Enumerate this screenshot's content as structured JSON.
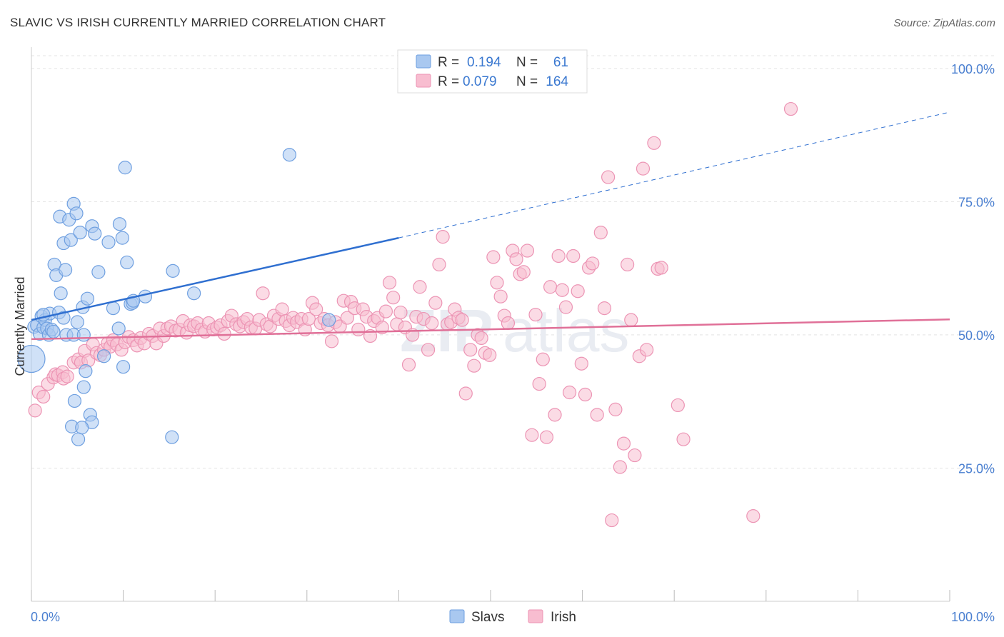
{
  "title": "SLAVIC VS IRISH CURRENTLY MARRIED CORRELATION CHART",
  "source": "Source: ZipAtlas.com",
  "watermark": {
    "zip": "ZIP",
    "atlas": "atlas"
  },
  "stats": [
    {
      "r_label": "R =",
      "r": "0.194",
      "n_label": "N =",
      "n": "61"
    },
    {
      "r_label": "R =",
      "r": "0.079",
      "n_label": "N =",
      "n": "164"
    }
  ],
  "legend": [
    {
      "label": "Slavs"
    },
    {
      "label": "Irish"
    }
  ],
  "colors": {
    "slavs_fill": "#a9c8f0",
    "slavs_stroke": "#6e9fe0",
    "slavs_line": "#2f6fd0",
    "irish_fill": "#f8bdd0",
    "irish_stroke": "#ec94b4",
    "irish_line": "#e07098",
    "tick": "#4a7fd0",
    "grid": "#e3e3e3"
  },
  "chart_data": {
    "type": "scatter",
    "xlabel": "",
    "ylabel": "Currently Married",
    "xlim": [
      0,
      100
    ],
    "ylim": [
      0,
      104
    ],
    "x_tick_labels": [
      "0.0%",
      "100.0%"
    ],
    "y_ticks": [
      25,
      50,
      75,
      100
    ],
    "y_tick_labels": [
      "25.0%",
      "50.0%",
      "75.0%",
      "100.0%"
    ],
    "grid": true,
    "legend_position": "bottom-center",
    "series": [
      {
        "name": "Slavs",
        "r": 0.194,
        "n": 61,
        "trend": {
          "x": [
            0,
            40
          ],
          "y": [
            52.8,
            68.2
          ],
          "dashed_to": [
            100,
            91.8
          ]
        },
        "points": [
          [
            0,
            45.5
          ],
          [
            0.3,
            51.5
          ],
          [
            0.6,
            51.8
          ],
          [
            0.9,
            50.2
          ],
          [
            1.1,
            53.5
          ],
          [
            1.3,
            51.4
          ],
          [
            1.5,
            52.8
          ],
          [
            1.7,
            51.2
          ],
          [
            1.9,
            50.0
          ],
          [
            2.2,
            51.0
          ],
          [
            2.0,
            54.0
          ],
          [
            2.5,
            63.2
          ],
          [
            2.7,
            61.2
          ],
          [
            3.0,
            54.2
          ],
          [
            3.2,
            57.8
          ],
          [
            3.5,
            67.2
          ],
          [
            3.7,
            62.2
          ],
          [
            3.8,
            50.0
          ],
          [
            3.1,
            72.2
          ],
          [
            4.1,
            71.6
          ],
          [
            4.3,
            67.8
          ],
          [
            4.6,
            74.6
          ],
          [
            4.9,
            72.8
          ],
          [
            5.3,
            69.2
          ],
          [
            5.6,
            55.2
          ],
          [
            6.1,
            56.8
          ],
          [
            6.6,
            70.4
          ],
          [
            6.9,
            69.0
          ],
          [
            7.3,
            61.8
          ],
          [
            8.4,
            67.4
          ],
          [
            8.9,
            55.0
          ],
          [
            9.5,
            51.2
          ],
          [
            9.6,
            70.8
          ],
          [
            9.9,
            68.2
          ],
          [
            10.2,
            81.4
          ],
          [
            10.4,
            63.6
          ],
          [
            10.8,
            55.8
          ],
          [
            11.0,
            56.0
          ],
          [
            11.1,
            56.4
          ],
          [
            12.4,
            57.2
          ],
          [
            15.4,
            62.0
          ],
          [
            17.7,
            57.8
          ],
          [
            28.1,
            83.8
          ],
          [
            32.4,
            52.8
          ],
          [
            4.7,
            37.6
          ],
          [
            4.6,
            50.0
          ],
          [
            5.0,
            52.4
          ],
          [
            5.7,
            50.0
          ],
          [
            5.9,
            43.2
          ],
          [
            6.4,
            35.0
          ],
          [
            6.6,
            33.6
          ],
          [
            4.4,
            32.8
          ],
          [
            5.5,
            32.6
          ],
          [
            5.1,
            30.4
          ],
          [
            5.7,
            40.2
          ],
          [
            7.9,
            46.0
          ],
          [
            10.0,
            44.0
          ],
          [
            15.3,
            30.8
          ],
          [
            3.5,
            53.2
          ],
          [
            1.3,
            53.8
          ],
          [
            2.4,
            50.6
          ]
        ]
      },
      {
        "name": "Irish",
        "r": 0.079,
        "n": 164,
        "trend": {
          "x": [
            0,
            100
          ],
          "y": [
            49.2,
            52.9
          ]
        },
        "points": [
          [
            0.4,
            35.8
          ],
          [
            0.8,
            39.2
          ],
          [
            1.3,
            38.4
          ],
          [
            1.8,
            40.8
          ],
          [
            2.4,
            42.0
          ],
          [
            2.6,
            42.6
          ],
          [
            2.9,
            42.4
          ],
          [
            3.4,
            43.0
          ],
          [
            3.5,
            41.8
          ],
          [
            3.9,
            42.2
          ],
          [
            4.6,
            44.8
          ],
          [
            5.1,
            45.4
          ],
          [
            5.4,
            44.8
          ],
          [
            5.8,
            47.0
          ],
          [
            6.2,
            45.2
          ],
          [
            6.7,
            48.2
          ],
          [
            7.1,
            46.6
          ],
          [
            7.5,
            46.2
          ],
          [
            7.9,
            47.2
          ],
          [
            8.3,
            48.4
          ],
          [
            8.6,
            47.8
          ],
          [
            8.9,
            49.0
          ],
          [
            9.3,
            48.2
          ],
          [
            9.8,
            47.2
          ],
          [
            10.2,
            48.6
          ],
          [
            10.6,
            49.6
          ],
          [
            11.1,
            49.0
          ],
          [
            11.5,
            48.0
          ],
          [
            11.9,
            49.4
          ],
          [
            12.3,
            48.4
          ],
          [
            12.8,
            50.2
          ],
          [
            13.2,
            49.8
          ],
          [
            13.6,
            48.4
          ],
          [
            14.0,
            51.2
          ],
          [
            14.4,
            49.8
          ],
          [
            14.8,
            51.2
          ],
          [
            15.2,
            51.6
          ],
          [
            15.7,
            50.8
          ],
          [
            16.1,
            51.0
          ],
          [
            16.5,
            52.6
          ],
          [
            16.9,
            50.4
          ],
          [
            17.3,
            51.8
          ],
          [
            17.7,
            51.6
          ],
          [
            18.1,
            52.2
          ],
          [
            18.5,
            51.0
          ],
          [
            18.9,
            50.6
          ],
          [
            19.3,
            52.2
          ],
          [
            19.8,
            51.0
          ],
          [
            20.2,
            51.4
          ],
          [
            20.6,
            51.8
          ],
          [
            21.0,
            50.2
          ],
          [
            21.4,
            52.6
          ],
          [
            21.8,
            53.6
          ],
          [
            22.3,
            52.0
          ],
          [
            22.7,
            51.6
          ],
          [
            23.1,
            52.4
          ],
          [
            23.5,
            53.0
          ],
          [
            23.9,
            51.4
          ],
          [
            24.4,
            51.2
          ],
          [
            24.8,
            52.8
          ],
          [
            25.2,
            57.8
          ],
          [
            25.6,
            52.0
          ],
          [
            26.0,
            51.6
          ],
          [
            26.4,
            53.6
          ],
          [
            26.9,
            53.0
          ],
          [
            27.3,
            54.8
          ],
          [
            27.7,
            52.6
          ],
          [
            28.1,
            51.8
          ],
          [
            28.5,
            53.2
          ],
          [
            28.9,
            52.4
          ],
          [
            29.4,
            53.0
          ],
          [
            29.8,
            51.0
          ],
          [
            30.2,
            53.0
          ],
          [
            30.6,
            56.0
          ],
          [
            31.0,
            54.8
          ],
          [
            31.5,
            52.2
          ],
          [
            31.9,
            53.0
          ],
          [
            32.3,
            51.8
          ],
          [
            32.7,
            48.8
          ],
          [
            33.1,
            52.4
          ],
          [
            33.6,
            51.6
          ],
          [
            34.0,
            56.4
          ],
          [
            34.4,
            53.2
          ],
          [
            34.8,
            56.2
          ],
          [
            35.2,
            55.0
          ],
          [
            35.6,
            51.0
          ],
          [
            36.1,
            54.8
          ],
          [
            36.5,
            53.4
          ],
          [
            36.9,
            49.8
          ],
          [
            37.3,
            52.6
          ],
          [
            37.7,
            53.2
          ],
          [
            38.2,
            51.4
          ],
          [
            38.6,
            54.4
          ],
          [
            39.0,
            59.8
          ],
          [
            39.4,
            57.0
          ],
          [
            39.8,
            52.0
          ],
          [
            40.2,
            54.2
          ],
          [
            40.7,
            51.4
          ],
          [
            41.1,
            44.4
          ],
          [
            41.5,
            50.0
          ],
          [
            41.9,
            53.4
          ],
          [
            42.3,
            59.0
          ],
          [
            42.7,
            53.0
          ],
          [
            43.2,
            47.2
          ],
          [
            43.6,
            52.2
          ],
          [
            44.0,
            56.0
          ],
          [
            44.4,
            63.2
          ],
          [
            44.8,
            68.4
          ],
          [
            45.3,
            52.0
          ],
          [
            45.7,
            52.4
          ],
          [
            46.1,
            54.8
          ],
          [
            46.5,
            53.2
          ],
          [
            46.9,
            52.8
          ],
          [
            47.3,
            39.0
          ],
          [
            47.8,
            47.2
          ],
          [
            48.2,
            44.2
          ],
          [
            48.6,
            50.0
          ],
          [
            49.0,
            49.4
          ],
          [
            49.4,
            46.6
          ],
          [
            49.9,
            46.2
          ],
          [
            50.3,
            64.6
          ],
          [
            50.7,
            59.8
          ],
          [
            51.1,
            57.2
          ],
          [
            51.5,
            53.6
          ],
          [
            51.9,
            52.2
          ],
          [
            52.4,
            65.8
          ],
          [
            52.8,
            64.2
          ],
          [
            53.2,
            61.4
          ],
          [
            53.6,
            61.8
          ],
          [
            54.0,
            65.8
          ],
          [
            54.5,
            31.2
          ],
          [
            54.9,
            53.8
          ],
          [
            55.3,
            40.8
          ],
          [
            55.7,
            45.4
          ],
          [
            56.1,
            30.8
          ],
          [
            56.5,
            59.0
          ],
          [
            57.0,
            35.0
          ],
          [
            57.4,
            64.8
          ],
          [
            57.8,
            58.4
          ],
          [
            58.2,
            55.2
          ],
          [
            58.6,
            39.2
          ],
          [
            59.0,
            64.8
          ],
          [
            59.5,
            58.2
          ],
          [
            59.9,
            44.6
          ],
          [
            60.3,
            38.8
          ],
          [
            60.7,
            62.6
          ],
          [
            61.1,
            63.4
          ],
          [
            61.6,
            35.0
          ],
          [
            62.0,
            69.2
          ],
          [
            62.4,
            55.0
          ],
          [
            62.8,
            79.6
          ],
          [
            63.2,
            15.2
          ],
          [
            63.6,
            36.0
          ],
          [
            64.1,
            25.2
          ],
          [
            64.5,
            29.6
          ],
          [
            64.9,
            63.2
          ],
          [
            65.3,
            52.8
          ],
          [
            65.7,
            27.4
          ],
          [
            66.2,
            46.0
          ],
          [
            66.6,
            81.2
          ],
          [
            67.0,
            47.2
          ],
          [
            67.8,
            86.0
          ],
          [
            68.2,
            62.4
          ],
          [
            68.6,
            62.6
          ],
          [
            70.4,
            36.8
          ],
          [
            71.0,
            30.4
          ],
          [
            78.6,
            16.0
          ],
          [
            82.7,
            92.4
          ]
        ]
      }
    ]
  }
}
